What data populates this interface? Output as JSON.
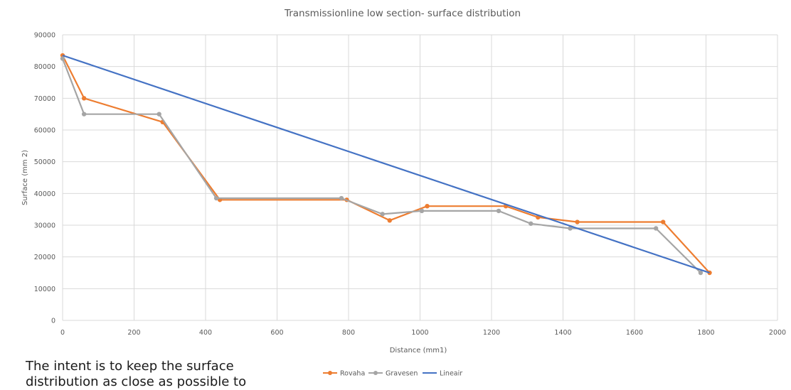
{
  "caption": "The intent is to keep the surface distribution as close as possible to",
  "chart_data": {
    "type": "line",
    "title": "Transmissionline low section- surface distribution",
    "xlabel": "Distance (mm1)",
    "ylabel": "Surface (mm 2)",
    "xlim": [
      0,
      2000
    ],
    "ylim": [
      0,
      90000
    ],
    "xticks": [
      0,
      200,
      400,
      600,
      800,
      1000,
      1200,
      1400,
      1600,
      1800,
      2000
    ],
    "yticks": [
      0,
      10000,
      20000,
      30000,
      40000,
      50000,
      60000,
      70000,
      80000,
      90000
    ],
    "grid": true,
    "legend_position": "bottom",
    "series": [
      {
        "name": "Rovaha",
        "color": "#ED7D31",
        "markers": true,
        "x": [
          0,
          60,
          280,
          440,
          795,
          915,
          1020,
          1240,
          1330,
          1440,
          1680,
          1810
        ],
        "y": [
          83500,
          70000,
          62500,
          38000,
          38000,
          31500,
          36000,
          36000,
          32500,
          31000,
          31000,
          15000
        ]
      },
      {
        "name": "Gravesen",
        "color": "#A5A5A5",
        "markers": true,
        "x": [
          0,
          60,
          270,
          430,
          780,
          895,
          1005,
          1220,
          1310,
          1420,
          1660,
          1785
        ],
        "y": [
          82500,
          65000,
          65000,
          38500,
          38500,
          33500,
          34500,
          34500,
          30500,
          29000,
          29000,
          15000
        ]
      },
      {
        "name": "Lineair",
        "color": "#4472C4",
        "markers": false,
        "x": [
          0,
          1810
        ],
        "y": [
          83500,
          15000
        ]
      }
    ]
  }
}
